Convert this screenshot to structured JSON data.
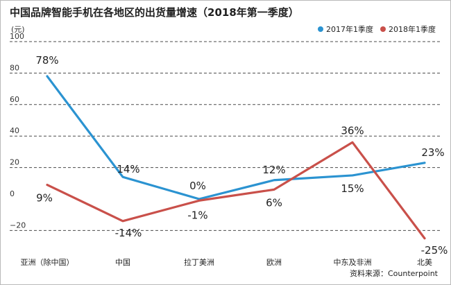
{
  "chart_data": {
    "type": "line",
    "title": "中国品牌智能手机在各地区的出货量增速（2018年第一季度）",
    "unit_label": "(元)",
    "categories": [
      "亚洲（除中国）",
      "中国",
      "拉丁美洲",
      "欧洲",
      "中东及非洲",
      "北美"
    ],
    "series": [
      {
        "name": "2017年1季度",
        "color": "#2b93d1",
        "values": [
          78,
          14,
          0,
          12,
          15,
          23
        ],
        "labels": [
          "78%",
          "14%",
          "0%",
          "12%",
          "15%",
          "23%"
        ]
      },
      {
        "name": "2018年1季度",
        "color": "#c9504a",
        "values": [
          9,
          -14,
          -1,
          6,
          36,
          -25
        ],
        "labels": [
          "9%",
          "-14%",
          "-1%",
          "6%",
          "36%",
          "-25%"
        ]
      }
    ],
    "ylim": [
      -30,
      100
    ],
    "yticks": [
      100,
      80,
      60,
      40,
      20,
      0,
      -20
    ],
    "ytick_labels": [
      "100",
      "80",
      "60",
      "40",
      "20",
      "0",
      "−20"
    ],
    "grid": "horizontal dashed",
    "legend_position": "top-right",
    "source": "资料来源：Counterpoint"
  }
}
